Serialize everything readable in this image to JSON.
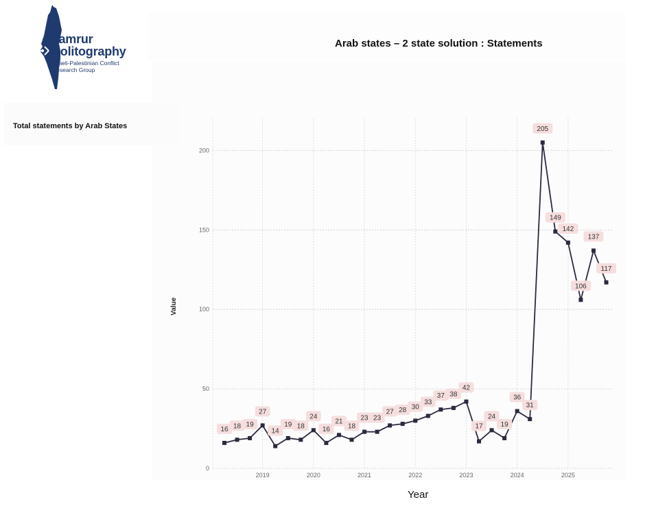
{
  "header": {
    "title": "Arab states – 2 state solution : Statements",
    "subtitle": "Total statements by Arab States"
  },
  "logo": {
    "name_line1": "Tamrur",
    "name_line2": "Politography",
    "tagline_line1": "Israeli-Palestinian Conflict",
    "tagline_line2": "Research Group",
    "color": "#1f3a6e"
  },
  "chart_data": {
    "type": "line",
    "xlabel": "Year",
    "ylabel": "Value",
    "ylim": [
      0,
      210
    ],
    "yticks": [
      0,
      50,
      100,
      150,
      200
    ],
    "xticks": [
      "2019",
      "2020",
      "2021",
      "2022",
      "2023",
      "2024",
      "2025"
    ],
    "grid": true,
    "line_color": "#2b2a3e",
    "label_bg": "#f6dede",
    "x_start": "2018-Q2",
    "x_step": "quarter",
    "series": [
      {
        "values": [
          16,
          18,
          19,
          27,
          14,
          19,
          18,
          24,
          16,
          21,
          18,
          23,
          23,
          27,
          28,
          30,
          33,
          37,
          38,
          42,
          17,
          24,
          19,
          36,
          31,
          205,
          149,
          142,
          106,
          137,
          117
        ]
      }
    ]
  }
}
